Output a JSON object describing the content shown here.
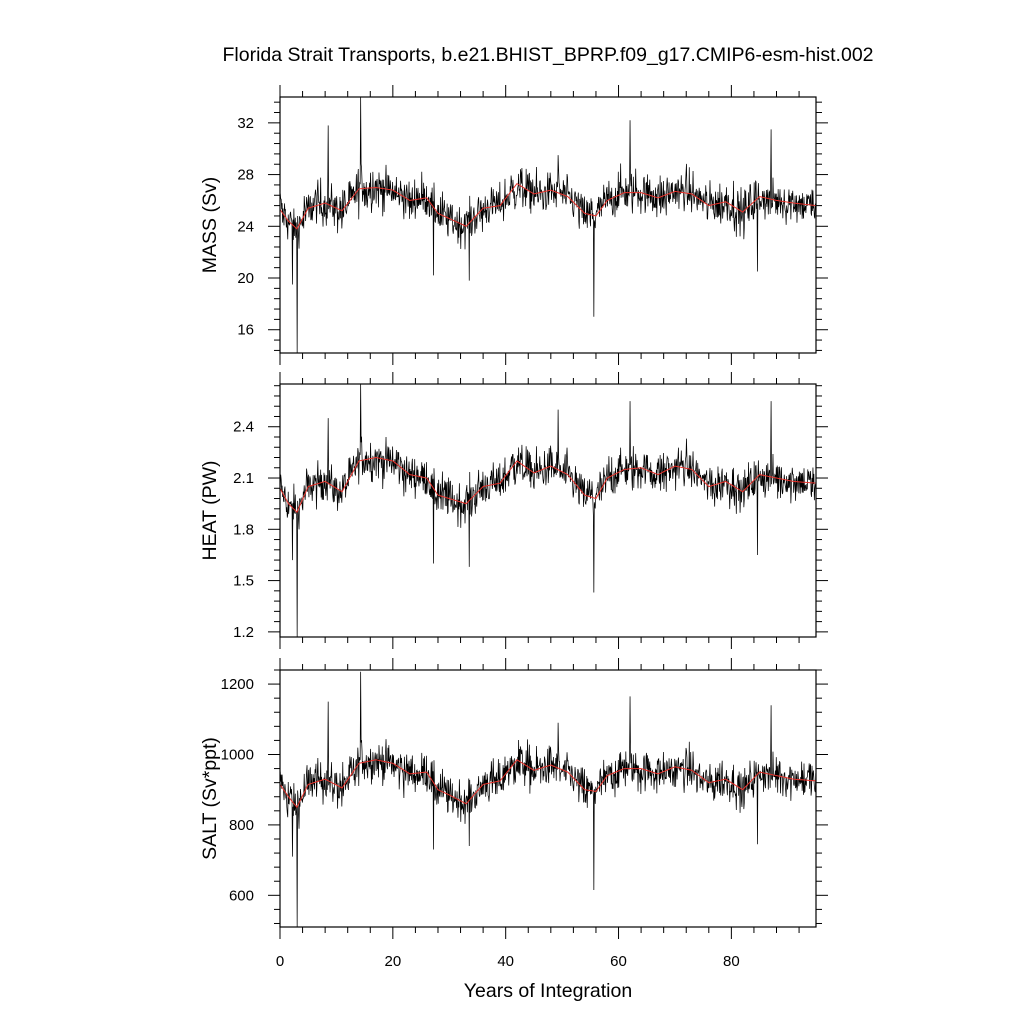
{
  "chart_data": {
    "type": "line",
    "title": "Florida Strait Transports, b.e21.BHIST_BPRP.f09_g17.CMIP6-esm-hist.002",
    "xlabel": "Years of Integration",
    "xlim": [
      0,
      95
    ],
    "x_ticks": [
      0,
      20,
      40,
      60,
      80
    ],
    "description_series": [
      "monthly transport (black)",
      "running mean (red)"
    ],
    "colors": {
      "raw": "#000000",
      "smooth": "#e8312a"
    },
    "panels": [
      {
        "ylabel": "MASS (Sv)",
        "ylim": [
          14.2,
          34
        ],
        "y_ticks": [
          16,
          20,
          24,
          28,
          32
        ],
        "y_tick_labels": [
          "16",
          "20",
          "24",
          "28",
          "32"
        ],
        "mean": 25.8,
        "noise": 1.35,
        "smooth_x": [
          0,
          1.5,
          3,
          5,
          8,
          11,
          14,
          17,
          20,
          23,
          26,
          28,
          30,
          33,
          36,
          39,
          42,
          45,
          48,
          51,
          54,
          56,
          58,
          61,
          64,
          67,
          70,
          73,
          76,
          79,
          82,
          85,
          88,
          91,
          95
        ],
        "smooth_y": [
          25.3,
          24.4,
          23.8,
          25.4,
          25.8,
          25.2,
          26.9,
          27.0,
          26.8,
          26.0,
          26.2,
          25.0,
          24.6,
          24.0,
          25.4,
          25.6,
          27.3,
          26.5,
          26.8,
          26.3,
          25.0,
          24.8,
          26.0,
          26.6,
          26.6,
          26.2,
          26.7,
          26.5,
          25.6,
          25.9,
          25.1,
          26.3,
          26.0,
          25.8,
          25.6
        ],
        "spikes": [
          [
            2.2,
            19.5
          ],
          [
            3.0,
            14.2
          ],
          [
            8.5,
            31.8
          ],
          [
            14.3,
            34.0
          ],
          [
            27.2,
            20.2
          ],
          [
            33.5,
            19.8
          ],
          [
            49.3,
            29.5
          ],
          [
            55.6,
            17.0
          ],
          [
            62.0,
            32.2
          ],
          [
            84.6,
            20.5
          ],
          [
            87.0,
            31.5
          ]
        ]
      },
      {
        "ylabel": "HEAT (PW)",
        "ylim": [
          1.17,
          2.65
        ],
        "y_ticks": [
          1.2,
          1.5,
          1.8,
          2.1,
          2.4
        ],
        "y_tick_labels": [
          "1.2",
          "1.5",
          "1.8",
          "2.1",
          "2.4"
        ],
        "mean": 2.07,
        "noise": 0.1,
        "smooth_x": [
          0,
          1.5,
          3,
          5,
          8,
          11,
          14,
          17,
          20,
          23,
          26,
          28,
          30,
          33,
          36,
          39,
          42,
          45,
          48,
          51,
          54,
          56,
          58,
          61,
          64,
          67,
          70,
          73,
          76,
          79,
          82,
          85,
          88,
          91,
          95
        ],
        "smooth_y": [
          2.04,
          1.95,
          1.9,
          2.05,
          2.08,
          2.02,
          2.2,
          2.22,
          2.2,
          2.12,
          2.1,
          2.0,
          1.98,
          1.95,
          2.05,
          2.07,
          2.2,
          2.13,
          2.17,
          2.12,
          2.0,
          1.98,
          2.1,
          2.15,
          2.16,
          2.12,
          2.17,
          2.15,
          2.05,
          2.08,
          2.02,
          2.12,
          2.1,
          2.08,
          2.07
        ],
        "spikes": [
          [
            2.2,
            1.62
          ],
          [
            3.0,
            1.17
          ],
          [
            8.5,
            2.45
          ],
          [
            14.3,
            2.65
          ],
          [
            27.2,
            1.6
          ],
          [
            33.5,
            1.58
          ],
          [
            49.3,
            2.5
          ],
          [
            55.6,
            1.43
          ],
          [
            62.0,
            2.55
          ],
          [
            84.6,
            1.65
          ],
          [
            87.0,
            2.55
          ]
        ]
      },
      {
        "ylabel": "SALT (Sv*ppt)",
        "ylim": [
          510,
          1240
        ],
        "y_ticks": [
          600,
          800,
          1000,
          1200
        ],
        "y_tick_labels": [
          "600",
          "800",
          "1000",
          "1200"
        ],
        "mean": 930,
        "noise": 48,
        "smooth_x": [
          0,
          1.5,
          3,
          5,
          8,
          11,
          14,
          17,
          20,
          23,
          26,
          28,
          30,
          33,
          36,
          39,
          42,
          45,
          48,
          51,
          54,
          56,
          58,
          61,
          64,
          67,
          70,
          73,
          76,
          79,
          82,
          85,
          88,
          91,
          95
        ],
        "smooth_y": [
          915,
          880,
          850,
          915,
          930,
          905,
          975,
          985,
          975,
          945,
          950,
          900,
          885,
          860,
          915,
          925,
          985,
          955,
          970,
          950,
          900,
          895,
          940,
          960,
          960,
          945,
          965,
          955,
          920,
          930,
          900,
          950,
          940,
          930,
          925
        ],
        "spikes": [
          [
            2.2,
            710
          ],
          [
            3.0,
            510
          ],
          [
            8.5,
            1150
          ],
          [
            14.3,
            1235
          ],
          [
            27.2,
            730
          ],
          [
            33.5,
            740
          ],
          [
            49.3,
            1090
          ],
          [
            55.6,
            615
          ],
          [
            62.0,
            1165
          ],
          [
            84.6,
            745
          ],
          [
            87.0,
            1140
          ]
        ]
      }
    ]
  }
}
